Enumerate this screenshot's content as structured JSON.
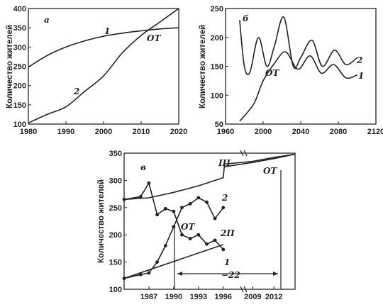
{
  "chart_data": [
    {
      "panel": "а",
      "type": "line",
      "ylabel": "Количество жителей",
      "xlim": [
        1980,
        2020
      ],
      "ylim": [
        100,
        400
      ],
      "xticks": [
        1980,
        1990,
        2000,
        2010,
        2020
      ],
      "yticks": [
        100,
        150,
        200,
        250,
        300,
        350,
        400
      ],
      "series": [
        {
          "name": "1",
          "x": [
            1980,
            1985,
            1990,
            1995,
            2000,
            2005,
            2010,
            2015,
            2020
          ],
          "y": [
            248,
            278,
            300,
            316,
            328,
            336,
            342,
            347,
            350
          ]
        },
        {
          "name": "2",
          "x": [
            1980,
            1985,
            1990,
            1995,
            2000,
            2005,
            2010,
            2015,
            2020
          ],
          "y": [
            103,
            125,
            145,
            185,
            225,
            285,
            330,
            365,
            400
          ]
        }
      ],
      "annotations": [
        {
          "text": "ОТ",
          "x": 2012,
          "y": 343
        }
      ]
    },
    {
      "panel": "б",
      "type": "line",
      "ylabel": "Количество жителей",
      "xlim": [
        1960,
        2120
      ],
      "ylim": [
        50,
        250
      ],
      "xticks": [
        1960,
        2000,
        2040,
        2080,
        2120
      ],
      "yticks": [
        50,
        100,
        150,
        200,
        250
      ],
      "series": [
        {
          "name": "2",
          "x": [
            1975,
            1980,
            1986,
            1995,
            2004,
            2012,
            2022,
            2032,
            2040,
            2052,
            2063,
            2076,
            2088,
            2100
          ],
          "y": [
            230,
            150,
            140,
            200,
            150,
            185,
            235,
            150,
            165,
            195,
            150,
            178,
            153,
            165
          ]
        },
        {
          "name": "1",
          "x": [
            1975,
            1990,
            2000,
            2012,
            2024,
            2037,
            2050,
            2062,
            2075,
            2088,
            2100
          ],
          "y": [
            55,
            85,
            125,
            155,
            175,
            145,
            168,
            138,
            153,
            130,
            135
          ]
        }
      ],
      "annotations": [
        {
          "text": "ОТ",
          "x": 2008,
          "y": 140
        }
      ]
    },
    {
      "panel": "в",
      "type": "line",
      "ylabel": "Количество жителей",
      "ylim": [
        100,
        350
      ],
      "xticks": [
        "1987",
        "1990",
        "1993",
        "1996",
        "2009",
        "2012"
      ],
      "yticks": [
        100,
        150,
        200,
        250,
        300,
        350
      ],
      "series": [
        {
          "name": "III",
          "x": [
            1984,
            1987,
            1990,
            1993,
            1996,
            2005,
            2009,
            2012,
            2015
          ],
          "y": [
            265,
            268,
            278,
            290,
            305,
            330,
            335,
            342,
            348
          ]
        },
        {
          "name": "ОТ",
          "x": [
            2005,
            2009,
            2012,
            2015
          ],
          "y": [
            325,
            333,
            340,
            348
          ]
        },
        {
          "name": "1",
          "x": [
            1984,
            1986,
            1987,
            1988,
            1989,
            1990,
            1991,
            1992,
            1993,
            1994,
            1995,
            1996
          ],
          "y": [
            265,
            270,
            295,
            237,
            248,
            243,
            200,
            193,
            200,
            183,
            190,
            173
          ]
        },
        {
          "name": "2",
          "x": [
            1984,
            1986,
            1987,
            1988,
            1989,
            1990,
            1991,
            1992,
            1993,
            1994,
            1995,
            1996
          ],
          "y": [
            120,
            127,
            130,
            150,
            180,
            215,
            250,
            257,
            268,
            260,
            230,
            250
          ]
        },
        {
          "name": "2П",
          "x": [
            1984,
            1996
          ],
          "y": [
            120,
            182
          ]
        }
      ],
      "annotations": [
        {
          "text": "ОТ",
          "x": 1991.5,
          "y": 215
        },
        {
          "text": "−22",
          "x": 2003,
          "y": 125
        }
      ]
    }
  ]
}
